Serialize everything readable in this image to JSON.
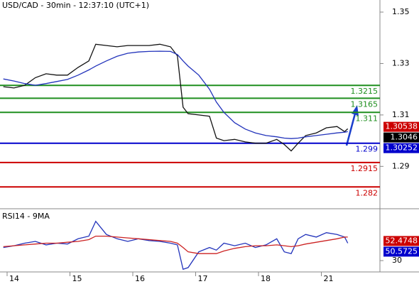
{
  "chart_data": [
    {
      "type": "line",
      "title": "USD/CAD - 30min - 12:37:10 (UTC+1)",
      "xlim": [
        -0.113,
        5.932
      ],
      "ylim": [
        1.2738,
        1.3547
      ],
      "yticks": [
        1.35,
        1.33,
        1.31,
        1.29
      ],
      "x": [
        -0.06,
        0.11,
        0.28,
        0.45,
        0.62,
        0.79,
        0.96,
        1.13,
        1.3,
        1.41,
        1.58,
        1.75,
        1.92,
        2.09,
        2.26,
        2.43,
        2.6,
        2.71,
        2.8,
        2.88,
        3.05,
        3.22,
        3.33,
        3.45,
        3.62,
        3.79,
        3.95,
        4.12,
        4.29,
        4.41,
        4.52,
        4.63,
        4.75,
        4.92,
        5.08,
        5.25,
        5.37,
        5.42
      ],
      "series": [
        {
          "color": "#111111",
          "values": [
            1.321,
            1.3205,
            1.3215,
            1.3245,
            1.326,
            1.3255,
            1.3255,
            1.3285,
            1.331,
            1.3375,
            1.337,
            1.3365,
            1.337,
            1.337,
            1.337,
            1.3375,
            1.3365,
            1.333,
            1.313,
            1.3105,
            1.31,
            1.3095,
            1.301,
            1.3,
            1.3005,
            1.2995,
            1.299,
            1.299,
            1.3005,
            1.2985,
            1.296,
            1.299,
            1.302,
            1.303,
            1.305,
            1.3055,
            1.3035,
            1.3046
          ]
        },
        {
          "color": "#2233bb",
          "values": [
            1.324,
            1.3232,
            1.3222,
            1.3215,
            1.3222,
            1.323,
            1.3238,
            1.3255,
            1.3275,
            1.329,
            1.331,
            1.3328,
            1.334,
            1.3345,
            1.3347,
            1.3348,
            1.3347,
            1.3335,
            1.331,
            1.329,
            1.3255,
            1.32,
            1.315,
            1.311,
            1.307,
            1.3045,
            1.303,
            1.302,
            1.3015,
            1.301,
            1.3008,
            1.301,
            1.3015,
            1.302,
            1.3025,
            1.303,
            1.3033,
            1.3035
          ]
        }
      ],
      "levels": [
        {
          "value": 1.3215,
          "color": "#1f8f1f"
        },
        {
          "value": 1.3165,
          "color": "#1f8f1f"
        },
        {
          "value": 1.311,
          "color": "#1f8f1f"
        },
        {
          "value": 1.299,
          "color": "#0000cc"
        },
        {
          "value": 1.2915,
          "color": "#cc0000"
        },
        {
          "value": 1.282,
          "color": "#cc0000"
        }
      ],
      "price_markers": [
        {
          "value": 1.30538,
          "color": "#cc0000"
        },
        {
          "value": 1.3046,
          "color": "#000000"
        },
        {
          "value": 1.30252,
          "color": "#0000cc"
        }
      ]
    },
    {
      "type": "line",
      "title": "RSI14 - 9MA",
      "xlim": [
        -0.113,
        5.932
      ],
      "ylim": [
        17,
        87
      ],
      "yticks": [
        30
      ],
      "xticks": [
        {
          "value": 0,
          "label": "14"
        },
        {
          "value": 1,
          "label": "15"
        },
        {
          "value": 2,
          "label": "16"
        },
        {
          "value": 3,
          "label": "17"
        },
        {
          "value": 4,
          "label": "18"
        },
        {
          "value": 5,
          "label": "21"
        }
      ],
      "x": [
        -0.06,
        0.11,
        0.28,
        0.45,
        0.62,
        0.79,
        0.96,
        1.13,
        1.3,
        1.41,
        1.58,
        1.75,
        1.92,
        2.09,
        2.26,
        2.43,
        2.6,
        2.71,
        2.8,
        2.88,
        3.05,
        3.22,
        3.33,
        3.45,
        3.62,
        3.79,
        3.95,
        4.12,
        4.29,
        4.41,
        4.52,
        4.63,
        4.75,
        4.92,
        5.08,
        5.25,
        5.37,
        5.42
      ],
      "series": [
        {
          "color": "#2233bb",
          "values": [
            45,
            47,
            50,
            52,
            48,
            50,
            49,
            55,
            58,
            75,
            60,
            55,
            52,
            55,
            53,
            52,
            50,
            48,
            20,
            22,
            40,
            45,
            42,
            50,
            47,
            50,
            45,
            48,
            55,
            40,
            38,
            55,
            60,
            57,
            62,
            60,
            57,
            50
          ]
        },
        {
          "color": "#cc2222",
          "values": [
            46,
            47,
            48,
            49,
            50,
            50,
            51,
            52,
            54,
            58,
            58,
            57,
            56,
            55,
            54,
            53,
            52,
            50,
            45,
            40,
            38,
            38,
            38,
            41,
            44,
            46,
            47,
            47,
            48,
            47,
            46,
            47,
            49,
            51,
            53,
            55,
            57,
            57
          ]
        }
      ],
      "price_markers": [
        {
          "value": 52.4748,
          "color": "#cc0000"
        },
        {
          "value": 50.5725,
          "color": "#0000cc"
        }
      ]
    }
  ]
}
